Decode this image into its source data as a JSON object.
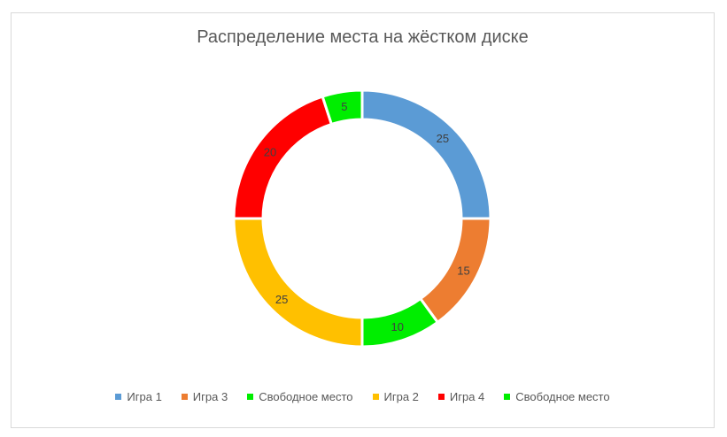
{
  "chart_data": {
    "type": "pie",
    "title": "Распределение места на жёстком диске",
    "donut": true,
    "legend_position": "bottom",
    "slices": [
      {
        "label": "Игра 1",
        "value": 25,
        "color": "#5b9bd5"
      },
      {
        "label": "Игра 3",
        "value": 15,
        "color": "#ed7d31"
      },
      {
        "label": "Свободное место",
        "value": 10,
        "color": "#00ee00"
      },
      {
        "label": "Игра 2",
        "value": 25,
        "color": "#ffc000"
      },
      {
        "label": "Игра 4",
        "value": 20,
        "color": "#ff0000"
      },
      {
        "label": "Свободное место",
        "value": 5,
        "color": "#00ee00"
      }
    ]
  }
}
